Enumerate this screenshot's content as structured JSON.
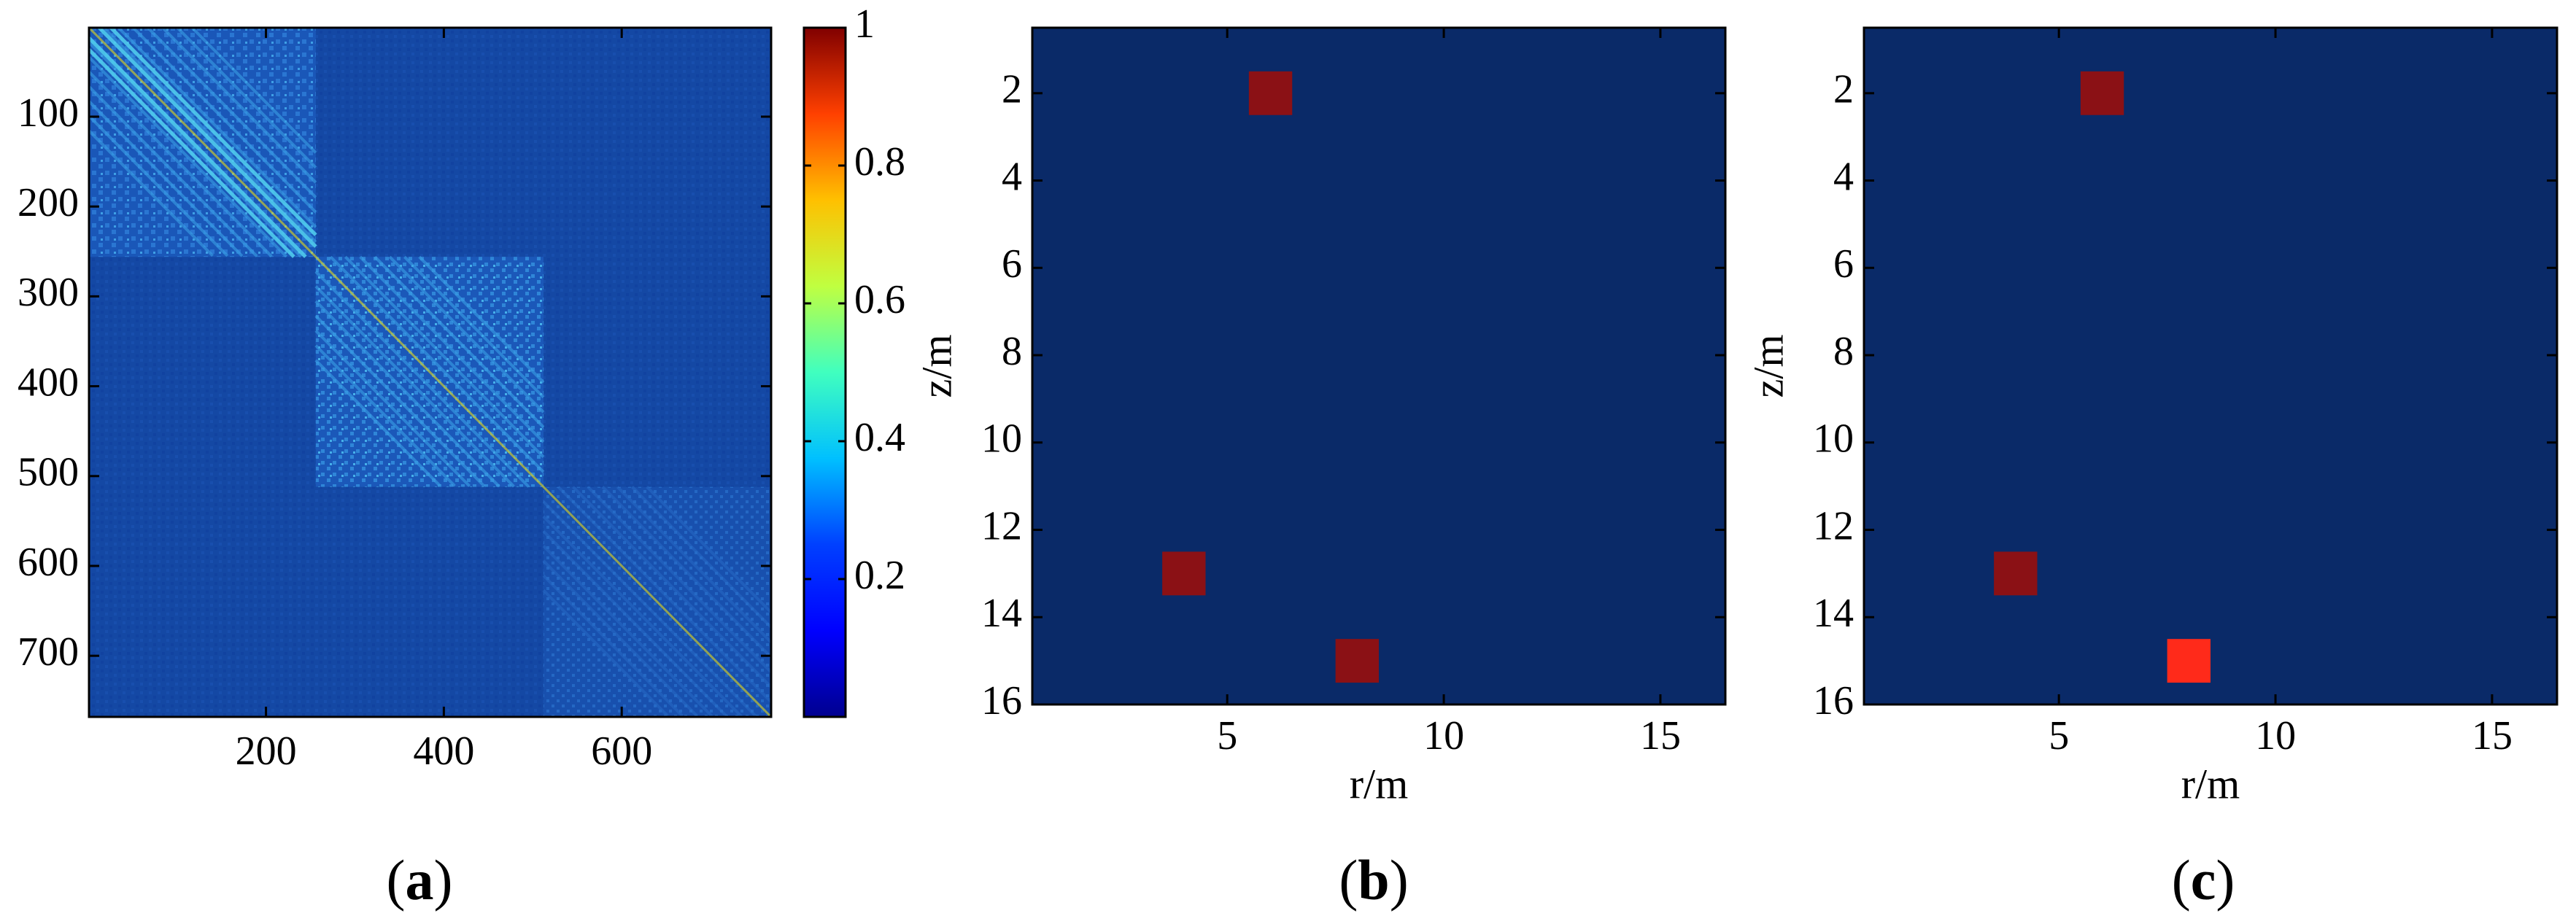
{
  "chart_data": [
    {
      "panel": "a",
      "type": "heatmap",
      "panel_label": "a",
      "x_ticks": [
        200,
        400,
        600
      ],
      "y_ticks": [
        100,
        200,
        300,
        400,
        500,
        600,
        700
      ],
      "xlim": [
        1,
        768
      ],
      "ylim": [
        1,
        768
      ],
      "block_boundaries": [
        1,
        256,
        512,
        768
      ],
      "description_values": {
        "off_diagonal_level": 0.12,
        "block_1_level": 0.25,
        "block_2_level": 0.22,
        "block_3_level": 0.18,
        "diagonal_level": 1.0
      },
      "colorbar": {
        "ticks": [
          "0.2",
          "0.4",
          "0.6",
          "0.8",
          "1"
        ],
        "tick_values": [
          0.2,
          0.4,
          0.6,
          0.8,
          1.0
        ],
        "range": [
          0.0,
          1.0
        ]
      },
      "colormap": [
        "#00008f",
        "#0000ff",
        "#0080ff",
        "#00ffff",
        "#80ff80",
        "#ffff00",
        "#ff8000",
        "#ff0000",
        "#800000"
      ],
      "grid": false
    },
    {
      "panel": "b",
      "type": "heatmap",
      "panel_label": "b",
      "xlabel": "r/m",
      "ylabel": "z/m",
      "x_ticks": [
        5,
        10,
        15
      ],
      "y_ticks": [
        2,
        4,
        6,
        8,
        10,
        12,
        14,
        16
      ],
      "xlim": [
        0.5,
        16.5
      ],
      "ylim": [
        0.5,
        16
      ],
      "background_value": 0,
      "cells": [
        {
          "r": 6,
          "z": 2,
          "value": 1.0
        },
        {
          "r": 4,
          "z": 13,
          "value": 1.0
        },
        {
          "r": 8,
          "z": 15,
          "value": 1.0
        }
      ],
      "background_color": "#0a2a68",
      "grid": false
    },
    {
      "panel": "c",
      "type": "heatmap",
      "panel_label": "c",
      "xlabel": "r/m",
      "ylabel": "z/m",
      "x_ticks": [
        5,
        10,
        15
      ],
      "y_ticks": [
        2,
        4,
        6,
        8,
        10,
        12,
        14,
        16
      ],
      "xlim": [
        0.5,
        16.5
      ],
      "ylim": [
        0.5,
        16
      ],
      "background_value": 0,
      "cells": [
        {
          "r": 6,
          "z": 2,
          "value": 1.0
        },
        {
          "r": 4,
          "z": 13,
          "value": 1.0
        },
        {
          "r": 8,
          "z": 15,
          "value": 0.85
        }
      ],
      "background_color": "#0a2a68",
      "grid": false
    }
  ]
}
